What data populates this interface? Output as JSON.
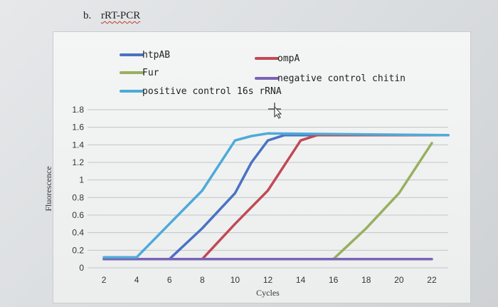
{
  "heading": {
    "panel": "b.",
    "method": "rRT-PCR"
  },
  "colors": {
    "htpAB": "#4a72c4",
    "Fur": "#98b060",
    "positive control 16s rRNA": "#4eaad8",
    "ompA": "#c04a55",
    "negative control chitin": "#7b62b8",
    "grid": "#c2c4c7"
  },
  "chart_data": {
    "type": "line",
    "title": "",
    "xlabel": "Cycles",
    "ylabel": "Fluorescence",
    "xlim": [
      1,
      23
    ],
    "ylim": [
      0,
      1.8
    ],
    "x_ticks": [
      "2",
      "4",
      "6",
      "8",
      "10",
      "12",
      "14",
      "16",
      "18",
      "20",
      "22"
    ],
    "y_ticks": [
      "0",
      "0.2",
      "0.4",
      "0.6",
      "0.8",
      "1",
      "1.2",
      "1.4",
      "1.6",
      "1.8"
    ],
    "grid": true,
    "legend_position": "top",
    "series": [
      {
        "name": "htpAB",
        "points": [
          [
            2,
            0.1
          ],
          [
            6,
            0.1
          ],
          [
            8,
            0.45
          ],
          [
            10,
            0.85
          ],
          [
            11,
            1.2
          ],
          [
            12,
            1.45
          ],
          [
            13,
            1.51
          ],
          [
            23,
            1.51
          ]
        ]
      },
      {
        "name": "ompA",
        "points": [
          [
            2,
            0.1
          ],
          [
            8,
            0.1
          ],
          [
            10,
            0.5
          ],
          [
            12,
            0.88
          ],
          [
            14,
            1.45
          ],
          [
            15,
            1.51
          ],
          [
            23,
            1.51
          ]
        ]
      },
      {
        "name": "Fur",
        "points": [
          [
            2,
            0.1
          ],
          [
            16,
            0.1
          ],
          [
            18,
            0.45
          ],
          [
            20,
            0.85
          ],
          [
            22,
            1.42
          ]
        ]
      },
      {
        "name": "negative control chitin",
        "points": [
          [
            2,
            0.1
          ],
          [
            22,
            0.1
          ]
        ]
      },
      {
        "name": "positive control 16s rRNA",
        "points": [
          [
            2,
            0.12
          ],
          [
            4,
            0.12
          ],
          [
            6,
            0.5
          ],
          [
            8,
            0.88
          ],
          [
            10,
            1.45
          ],
          [
            11,
            1.5
          ],
          [
            12,
            1.53
          ],
          [
            23,
            1.51
          ]
        ]
      }
    ],
    "legend": [
      {
        "series": "htpAB",
        "label": "htpAB"
      },
      {
        "series": "Fur",
        "label": "Fur"
      },
      {
        "series": "positive control 16s rRNA",
        "label": "positive control 16s rRNA"
      },
      {
        "series": "ompA",
        "label": "ompA"
      },
      {
        "series": "negative control chitin",
        "label": "negative control chitin"
      }
    ]
  }
}
